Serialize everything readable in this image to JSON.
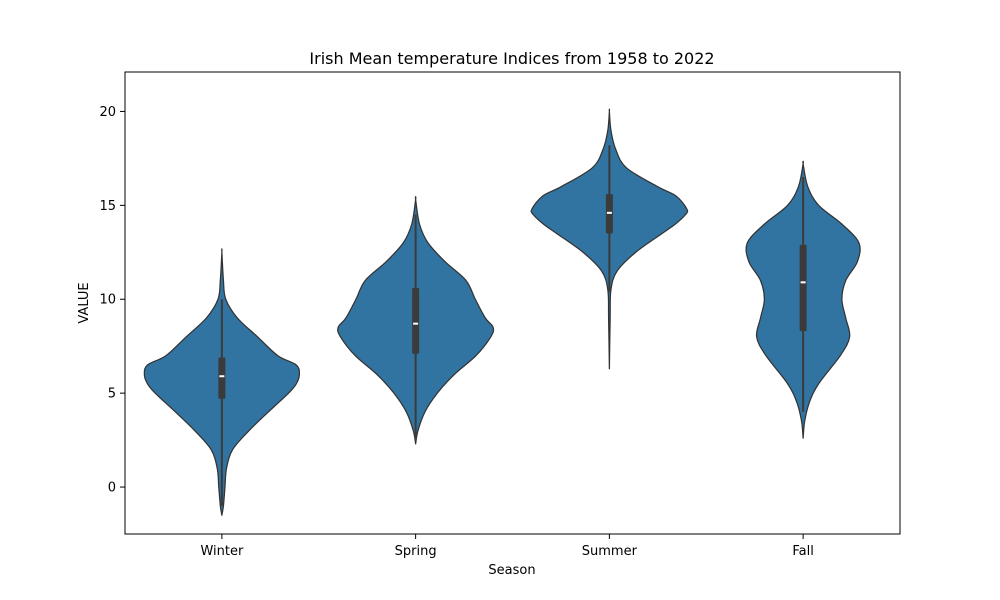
{
  "chart_data": {
    "type": "violin",
    "title": "Irish Mean temperature Indices from 1958 to 2022",
    "xlabel": "Season",
    "ylabel": "VALUE",
    "categories": [
      "Winter",
      "Spring",
      "Summer",
      "Fall"
    ],
    "ylim": [
      -2.5,
      22.1
    ],
    "yticks": [
      0,
      5,
      10,
      15,
      20
    ],
    "grid": false,
    "colors": {
      "violin_fill": "#3274a1",
      "violin_edge": "#333333",
      "box": "#3b3b3b",
      "median": "#ffffff"
    },
    "violins": [
      {
        "category": "Winter",
        "min": -1.5,
        "max": 12.5,
        "q1": 4.7,
        "median": 5.9,
        "q3": 6.9,
        "whisker_low": -1.0,
        "whisker_high": 10.0,
        "density": [
          [
            -1.5,
            0.0
          ],
          [
            -1.0,
            0.02
          ],
          [
            0,
            0.04
          ],
          [
            1,
            0.06
          ],
          [
            2,
            0.14
          ],
          [
            3,
            0.35
          ],
          [
            4,
            0.6
          ],
          [
            5,
            0.86
          ],
          [
            5.5,
            0.96
          ],
          [
            6,
            1.0
          ],
          [
            6.5,
            0.96
          ],
          [
            7,
            0.72
          ],
          [
            8,
            0.46
          ],
          [
            9,
            0.2
          ],
          [
            10,
            0.05
          ],
          [
            11,
            0.02
          ],
          [
            12.5,
            0.0
          ]
        ]
      },
      {
        "category": "Spring",
        "min": 2.3,
        "max": 15.3,
        "q1": 7.1,
        "median": 8.7,
        "q3": 10.6,
        "whisker_low": 2.5,
        "whisker_high": 14.5,
        "density": [
          [
            2.3,
            0.0
          ],
          [
            3,
            0.03
          ],
          [
            4,
            0.12
          ],
          [
            5,
            0.28
          ],
          [
            6,
            0.5
          ],
          [
            7,
            0.78
          ],
          [
            8,
            0.97
          ],
          [
            8.5,
            1.0
          ],
          [
            9,
            0.9
          ],
          [
            10,
            0.77
          ],
          [
            11,
            0.65
          ],
          [
            12,
            0.38
          ],
          [
            13,
            0.16
          ],
          [
            14,
            0.05
          ],
          [
            15.3,
            0.0
          ]
        ]
      },
      {
        "category": "Summer",
        "min": 6.3,
        "max": 20.0,
        "q1": 13.5,
        "median": 14.6,
        "q3": 15.6,
        "whisker_low": 10.4,
        "whisker_high": 18.2,
        "density": [
          [
            6.3,
            0.0
          ],
          [
            9,
            0.01
          ],
          [
            10.5,
            0.02
          ],
          [
            11.5,
            0.1
          ],
          [
            12.5,
            0.34
          ],
          [
            13.5,
            0.68
          ],
          [
            14,
            0.85
          ],
          [
            14.5,
            0.98
          ],
          [
            14.8,
            1.0
          ],
          [
            15.5,
            0.86
          ],
          [
            16,
            0.62
          ],
          [
            17,
            0.22
          ],
          [
            18,
            0.08
          ],
          [
            19,
            0.02
          ],
          [
            20,
            0.0
          ]
        ]
      },
      {
        "category": "Fall",
        "min": 2.6,
        "max": 17.2,
        "q1": 8.3,
        "median": 10.9,
        "q3": 12.9,
        "whisker_low": 4.0,
        "whisker_high": 16.5,
        "density": [
          [
            2.6,
            0.0
          ],
          [
            3.5,
            0.02
          ],
          [
            4.5,
            0.08
          ],
          [
            5.5,
            0.2
          ],
          [
            7,
            0.48
          ],
          [
            8,
            0.6
          ],
          [
            9,
            0.55
          ],
          [
            10,
            0.5
          ],
          [
            11,
            0.55
          ],
          [
            12,
            0.7
          ],
          [
            13,
            0.72
          ],
          [
            14,
            0.5
          ],
          [
            15,
            0.2
          ],
          [
            16,
            0.06
          ],
          [
            17.2,
            0.0
          ]
        ]
      }
    ]
  }
}
